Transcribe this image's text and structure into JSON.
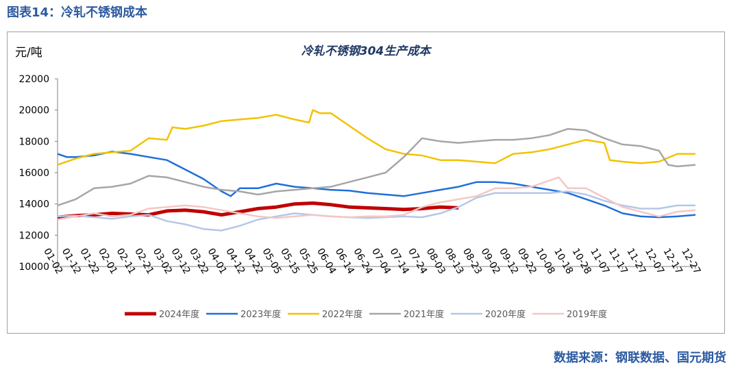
{
  "figure_title": "图表14：冷轧不锈钢成本",
  "source": "数据来源：钢联数据、国元期货",
  "chart_data": {
    "type": "line",
    "title": "冷轧不锈钢304生产成本",
    "ylabel": "元/吨",
    "xlabel": "",
    "ylim": [
      10000,
      22000
    ],
    "yticks": [
      10000,
      12000,
      14000,
      16000,
      18000,
      20000,
      22000
    ],
    "x_ticks": [
      "01-02",
      "01-12",
      "01-22",
      "02-01",
      "02-11",
      "02-21",
      "03-02",
      "03-12",
      "03-22",
      "04-01",
      "04-12",
      "04-22",
      "05-05",
      "05-15",
      "05-25",
      "06-04",
      "06-14",
      "06-24",
      "07-04",
      "07-14",
      "07-24",
      "08-03",
      "08-13",
      "08-23",
      "09-02",
      "09-12",
      "09-22",
      "10-08",
      "10-18",
      "10-28",
      "11-07",
      "11-17",
      "11-27",
      "12-07",
      "12-17",
      "12-27"
    ],
    "x_note": "x values are fractional tick positions (0 = 01-02, 35 = 12-27)",
    "grid": false,
    "legend_position": "bottom",
    "series": [
      {
        "name": "2024年度",
        "color": "#c00000",
        "width": 5,
        "points": [
          [
            0,
            13150
          ],
          [
            1,
            13250
          ],
          [
            2,
            13300
          ],
          [
            3,
            13400
          ],
          [
            4,
            13350
          ],
          [
            5,
            13300
          ],
          [
            6,
            13550
          ],
          [
            7,
            13600
          ],
          [
            8,
            13500
          ],
          [
            9,
            13300
          ],
          [
            10,
            13500
          ],
          [
            11,
            13700
          ],
          [
            12,
            13800
          ],
          [
            13,
            14000
          ],
          [
            14,
            14050
          ],
          [
            15,
            13950
          ],
          [
            16,
            13800
          ],
          [
            17,
            13750
          ],
          [
            18,
            13700
          ],
          [
            19,
            13650
          ],
          [
            20,
            13700
          ],
          [
            21,
            13800
          ],
          [
            22,
            13750
          ]
        ]
      },
      {
        "name": "2023年度",
        "color": "#1e6fd9",
        "width": 2.5,
        "points": [
          [
            0,
            17200
          ],
          [
            0.5,
            17000
          ],
          [
            1,
            17000
          ],
          [
            2,
            17100
          ],
          [
            3,
            17350
          ],
          [
            4,
            17200
          ],
          [
            5,
            17000
          ],
          [
            6,
            16800
          ],
          [
            7,
            16200
          ],
          [
            8,
            15600
          ],
          [
            9,
            14800
          ],
          [
            9.5,
            14500
          ],
          [
            10,
            15000
          ],
          [
            11,
            15000
          ],
          [
            12,
            15300
          ],
          [
            13,
            15100
          ],
          [
            14,
            15000
          ],
          [
            15,
            14900
          ],
          [
            16,
            14850
          ],
          [
            17,
            14700
          ],
          [
            18,
            14600
          ],
          [
            19,
            14500
          ],
          [
            20,
            14700
          ],
          [
            21,
            14900
          ],
          [
            22,
            15100
          ],
          [
            23,
            15400
          ],
          [
            24,
            15400
          ],
          [
            25,
            15300
          ],
          [
            26,
            15100
          ],
          [
            27,
            14900
          ],
          [
            28,
            14700
          ],
          [
            29,
            14300
          ],
          [
            30,
            13900
          ],
          [
            31,
            13400
          ],
          [
            32,
            13200
          ],
          [
            33,
            13150
          ],
          [
            34,
            13200
          ],
          [
            35,
            13300
          ]
        ]
      },
      {
        "name": "2022年度",
        "color": "#f2c200",
        "width": 2.5,
        "points": [
          [
            0,
            16500
          ],
          [
            1,
            16900
          ],
          [
            2,
            17200
          ],
          [
            3,
            17300
          ],
          [
            4,
            17400
          ],
          [
            5,
            18200
          ],
          [
            6,
            18100
          ],
          [
            6.3,
            18900
          ],
          [
            7,
            18800
          ],
          [
            8,
            19000
          ],
          [
            9,
            19300
          ],
          [
            10,
            19400
          ],
          [
            11,
            19500
          ],
          [
            12,
            19700
          ],
          [
            13,
            19400
          ],
          [
            13.8,
            19200
          ],
          [
            14,
            20000
          ],
          [
            14.4,
            19800
          ],
          [
            15,
            19800
          ],
          [
            16,
            19000
          ],
          [
            17,
            18200
          ],
          [
            18,
            17500
          ],
          [
            19,
            17200
          ],
          [
            20,
            17100
          ],
          [
            21,
            16800
          ],
          [
            22,
            16800
          ],
          [
            23,
            16700
          ],
          [
            24,
            16600
          ],
          [
            25,
            17200
          ],
          [
            26,
            17300
          ],
          [
            27,
            17500
          ],
          [
            28,
            17800
          ],
          [
            29,
            18100
          ],
          [
            30,
            17900
          ],
          [
            30.3,
            16800
          ],
          [
            31,
            16700
          ],
          [
            32,
            16600
          ],
          [
            33,
            16700
          ],
          [
            34,
            17200
          ],
          [
            35,
            17200
          ]
        ]
      },
      {
        "name": "2021年度",
        "color": "#a6a6a6",
        "width": 2.5,
        "points": [
          [
            0,
            13900
          ],
          [
            1,
            14300
          ],
          [
            2,
            15000
          ],
          [
            3,
            15100
          ],
          [
            4,
            15300
          ],
          [
            5,
            15800
          ],
          [
            6,
            15700
          ],
          [
            7,
            15400
          ],
          [
            8,
            15100
          ],
          [
            9,
            14900
          ],
          [
            10,
            14800
          ],
          [
            11,
            14600
          ],
          [
            12,
            14800
          ],
          [
            13,
            14900
          ],
          [
            14,
            15000
          ],
          [
            15,
            15100
          ],
          [
            16,
            15400
          ],
          [
            17,
            15700
          ],
          [
            18,
            16000
          ],
          [
            19,
            17000
          ],
          [
            20,
            18200
          ],
          [
            21,
            18000
          ],
          [
            22,
            17900
          ],
          [
            23,
            18000
          ],
          [
            24,
            18100
          ],
          [
            25,
            18100
          ],
          [
            26,
            18200
          ],
          [
            27,
            18400
          ],
          [
            28,
            18800
          ],
          [
            29,
            18700
          ],
          [
            30,
            18200
          ],
          [
            31,
            17800
          ],
          [
            32,
            17700
          ],
          [
            33,
            17400
          ],
          [
            33.5,
            16500
          ],
          [
            34,
            16400
          ],
          [
            35,
            16500
          ]
        ]
      },
      {
        "name": "2020年度",
        "color": "#b4c7e7",
        "width": 2.5,
        "points": [
          [
            0,
            13200
          ],
          [
            1,
            13250
          ],
          [
            2,
            13150
          ],
          [
            3,
            13050
          ],
          [
            4,
            13200
          ],
          [
            5,
            13300
          ],
          [
            6,
            12900
          ],
          [
            7,
            12700
          ],
          [
            8,
            12400
          ],
          [
            9,
            12300
          ],
          [
            10,
            12600
          ],
          [
            11,
            13000
          ],
          [
            12,
            13200
          ],
          [
            13,
            13400
          ],
          [
            14,
            13300
          ],
          [
            15,
            13200
          ],
          [
            16,
            13150
          ],
          [
            17,
            13100
          ],
          [
            18,
            13150
          ],
          [
            19,
            13200
          ],
          [
            20,
            13150
          ],
          [
            21,
            13400
          ],
          [
            22,
            13800
          ],
          [
            23,
            14400
          ],
          [
            24,
            14700
          ],
          [
            25,
            14700
          ],
          [
            26,
            14700
          ],
          [
            27,
            14700
          ],
          [
            28,
            14800
          ],
          [
            29,
            14600
          ],
          [
            30,
            14200
          ],
          [
            31,
            13900
          ],
          [
            32,
            13700
          ],
          [
            33,
            13700
          ],
          [
            34,
            13900
          ],
          [
            35,
            13900
          ]
        ]
      },
      {
        "name": "2019年度",
        "color": "#f4c7c3",
        "width": 2.5,
        "points": [
          [
            0,
            13000
          ],
          [
            1,
            13200
          ],
          [
            2,
            13400
          ],
          [
            3,
            13200
          ],
          [
            4,
            13300
          ],
          [
            5,
            13700
          ],
          [
            6,
            13800
          ],
          [
            7,
            13900
          ],
          [
            8,
            13800
          ],
          [
            9,
            13600
          ],
          [
            10,
            13400
          ],
          [
            11,
            13200
          ],
          [
            12,
            13100
          ],
          [
            13,
            13200
          ],
          [
            14,
            13300
          ],
          [
            15,
            13200
          ],
          [
            16,
            13150
          ],
          [
            17,
            13200
          ],
          [
            18,
            13200
          ],
          [
            19,
            13300
          ],
          [
            20,
            13800
          ],
          [
            21,
            14100
          ],
          [
            22,
            14300
          ],
          [
            23,
            14500
          ],
          [
            24,
            15000
          ],
          [
            25,
            15000
          ],
          [
            26,
            15100
          ],
          [
            27,
            15500
          ],
          [
            27.5,
            15700
          ],
          [
            28,
            15000
          ],
          [
            29,
            15000
          ],
          [
            30,
            14400
          ],
          [
            31,
            13800
          ],
          [
            32,
            13500
          ],
          [
            33,
            13200
          ],
          [
            34,
            13500
          ],
          [
            35,
            13600
          ]
        ]
      }
    ]
  }
}
